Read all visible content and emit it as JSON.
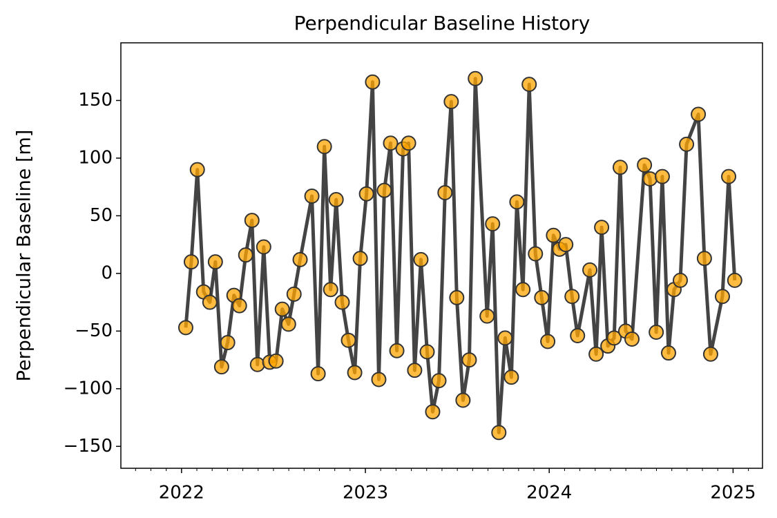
{
  "chart_data": {
    "type": "line",
    "title": "Perpendicular Baseline History",
    "ylabel": "Perpendicular Baseline [m]",
    "x": [
      2022.023,
      2022.053,
      2022.086,
      2022.12,
      2022.154,
      2022.184,
      2022.218,
      2022.251,
      2022.285,
      2022.315,
      2022.349,
      2022.383,
      2022.413,
      2022.447,
      2022.48,
      2022.514,
      2022.548,
      2022.582,
      2022.612,
      2022.645,
      2022.709,
      2022.743,
      2022.777,
      2022.811,
      2022.841,
      2022.874,
      2022.908,
      2022.942,
      2022.972,
      2023.006,
      2023.039,
      2023.073,
      2023.103,
      2023.137,
      2023.171,
      2023.205,
      2023.235,
      2023.268,
      2023.302,
      2023.336,
      2023.366,
      2023.4,
      2023.433,
      2023.467,
      2023.497,
      2023.531,
      2023.565,
      2023.598,
      2023.662,
      2023.692,
      2023.726,
      2023.76,
      2023.794,
      2023.824,
      2023.857,
      2023.891,
      2023.925,
      2023.959,
      2023.992,
      2024.023,
      2024.056,
      2024.09,
      2024.124,
      2024.154,
      2024.221,
      2024.255,
      2024.285,
      2024.319,
      2024.353,
      2024.386,
      2024.416,
      2024.45,
      2024.518,
      2024.548,
      2024.582,
      2024.615,
      2024.649,
      2024.679,
      2024.713,
      2024.747,
      2024.811,
      2024.844,
      2024.878,
      2024.942,
      2024.976,
      2025.009
    ],
    "series": [
      {
        "name": "Perpendicular Baseline",
        "color": "#444444",
        "marker_color": "#ffa500",
        "values": [
          -47,
          10,
          90,
          -16,
          -25,
          10,
          -81,
          -60,
          -19,
          -28,
          16,
          46,
          -79,
          23,
          -77,
          -76,
          -31,
          -44,
          -18,
          12,
          67,
          -87,
          110,
          -14,
          64,
          -25,
          -58,
          -86,
          13,
          69,
          166,
          -92,
          72,
          113,
          -67,
          108,
          113,
          -84,
          12,
          -68,
          -120,
          -93,
          70,
          149,
          -21,
          -110,
          -75,
          169,
          -37,
          43,
          -138,
          -56,
          -90,
          62,
          -14,
          164,
          17,
          -21,
          -59,
          33,
          21,
          25,
          -20,
          -54,
          3,
          -70,
          40,
          -63,
          -56,
          92,
          -50,
          -57,
          94,
          82,
          -51,
          84,
          -69,
          -14,
          -6,
          112,
          138,
          13,
          -70,
          -20,
          84,
          -6
        ]
      }
    ],
    "xlim": [
      2021.67,
      2025.16
    ],
    "xticks": [
      2022,
      2023,
      2024,
      2025
    ],
    "ylim": [
      -169,
      200
    ],
    "yticks": [
      {
        "value": -150,
        "label": "−150"
      },
      {
        "value": -100,
        "label": "−100"
      },
      {
        "value": -50,
        "label": "−50"
      },
      0,
      50,
      100,
      150
    ]
  }
}
